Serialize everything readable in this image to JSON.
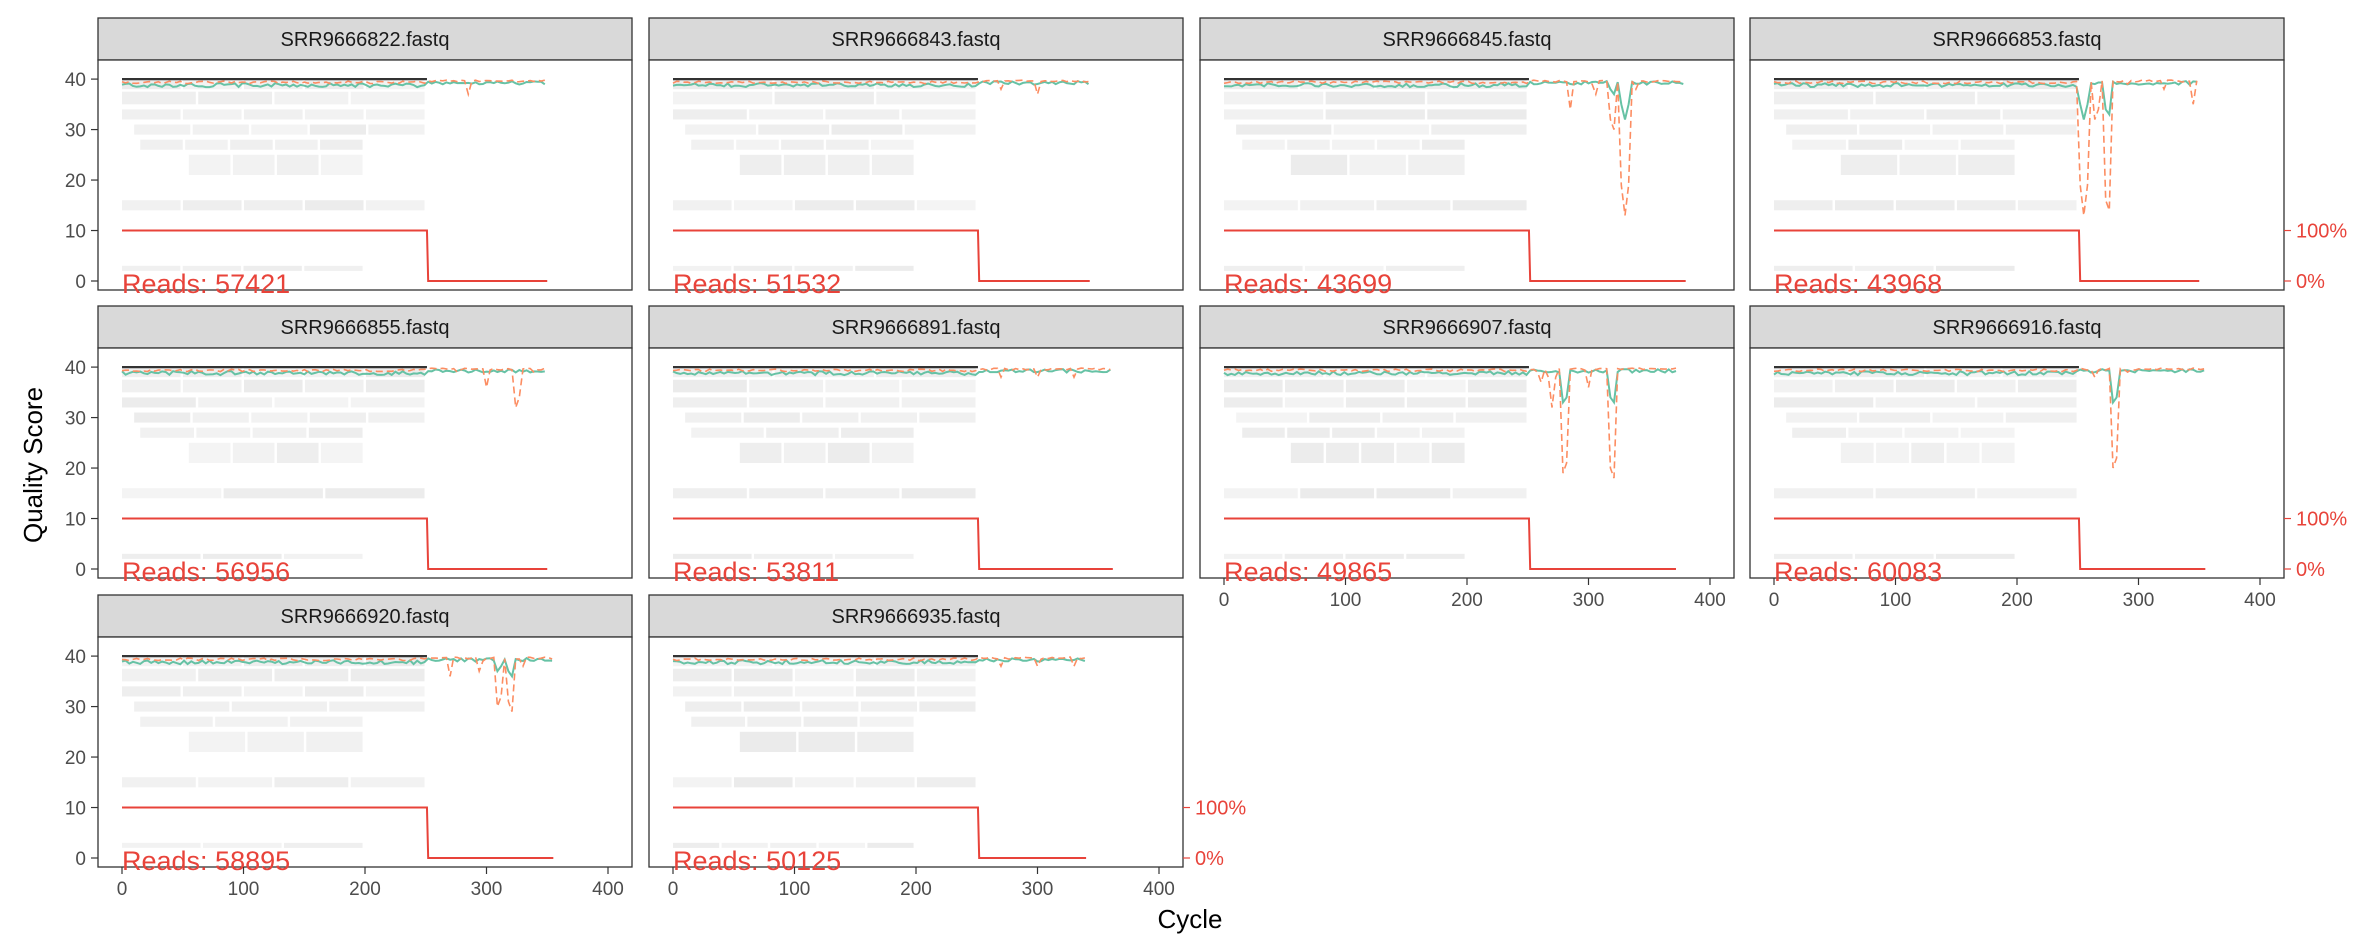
{
  "figure": {
    "xlabel": "Cycle",
    "ylabel": "Quality Score"
  },
  "colors": {
    "mean_line": "#66c2a5",
    "quantile_line": "#fc8d62",
    "cumulative_line": "#e8433a",
    "reads_label": "#e8433a",
    "strip_fill": "#d9d9d9",
    "heatmap": "#ebebeb",
    "median_line": "#333333"
  },
  "chart_data": {
    "type": "line",
    "description_facets": "faceted quality profile plot",
    "ylim": [
      0,
      42
    ],
    "xlim": [
      0,
      400
    ],
    "x_ticks": [
      0,
      100,
      200,
      300,
      400
    ],
    "y_ticks": [
      0,
      10,
      20,
      30,
      40
    ],
    "secondary_axis_ticks": [
      "0%",
      "100%"
    ],
    "grid": false,
    "facets": [
      {
        "title": "SRR9666822.fastq",
        "reads_label": "Reads:  57421",
        "reads": 57421,
        "max_cycle": 350,
        "drop_cycle": 251,
        "dips": [
          [
            265,
            38
          ],
          [
            285,
            37
          ],
          [
            320,
            39
          ]
        ]
      },
      {
        "title": "SRR9666843.fastq",
        "reads_label": "Reads:  51532",
        "reads": 51532,
        "max_cycle": 343,
        "drop_cycle": 251,
        "dips": [
          [
            270,
            38
          ],
          [
            300,
            37
          ],
          [
            320,
            38
          ]
        ]
      },
      {
        "title": "SRR9666845.fastq",
        "reads_label": "Reads:  43699",
        "reads": 43699,
        "max_cycle": 380,
        "drop_cycle": 251,
        "dips": [
          [
            285,
            34
          ],
          [
            305,
            35
          ],
          [
            320,
            28
          ],
          [
            330,
            13
          ],
          [
            340,
            36
          ]
        ]
      },
      {
        "title": "SRR9666853.fastq",
        "reads_label": "Reads:  43968",
        "reads": 43968,
        "max_cycle": 350,
        "drop_cycle": 251,
        "dips": [
          [
            255,
            13
          ],
          [
            265,
            30
          ],
          [
            275,
            12
          ],
          [
            290,
            37
          ],
          [
            320,
            36
          ],
          [
            345,
            35
          ]
        ]
      },
      {
        "title": "SRR9666855.fastq",
        "reads_label": "Reads:  56956",
        "reads": 56956,
        "max_cycle": 350,
        "drop_cycle": 251,
        "dips": [
          [
            275,
            37
          ],
          [
            300,
            36
          ],
          [
            325,
            30
          ],
          [
            340,
            37
          ]
        ]
      },
      {
        "title": "SRR9666891.fastq",
        "reads_label": "Reads:  53811",
        "reads": 53811,
        "max_cycle": 362,
        "drop_cycle": 251,
        "dips": [
          [
            270,
            38
          ],
          [
            300,
            38
          ],
          [
            330,
            38
          ]
        ]
      },
      {
        "title": "SRR9666907.fastq",
        "reads_label": "Reads:  49865",
        "reads": 49865,
        "max_cycle": 372,
        "drop_cycle": 251,
        "dips": [
          [
            260,
            35
          ],
          [
            270,
            32
          ],
          [
            280,
            17
          ],
          [
            300,
            36
          ],
          [
            320,
            16
          ],
          [
            340,
            38
          ]
        ]
      },
      {
        "title": "SRR9666916.fastq",
        "reads_label": "Reads:  60083",
        "reads": 60083,
        "max_cycle": 355,
        "drop_cycle": 251,
        "dips": [
          [
            265,
            36
          ],
          [
            280,
            18
          ],
          [
            290,
            37
          ],
          [
            310,
            38
          ]
        ]
      },
      {
        "title": "SRR9666920.fastq",
        "reads_label": "Reads:  58895",
        "reads": 58895,
        "max_cycle": 355,
        "drop_cycle": 251,
        "dips": [
          [
            270,
            36
          ],
          [
            295,
            35
          ],
          [
            310,
            28
          ],
          [
            320,
            27
          ],
          [
            330,
            38
          ]
        ]
      },
      {
        "title": "SRR9666935.fastq",
        "reads_label": "Reads:  50125",
        "reads": 50125,
        "max_cycle": 340,
        "drop_cycle": 251,
        "dips": [
          [
            270,
            38
          ],
          [
            300,
            38
          ],
          [
            330,
            38
          ]
        ]
      }
    ]
  }
}
